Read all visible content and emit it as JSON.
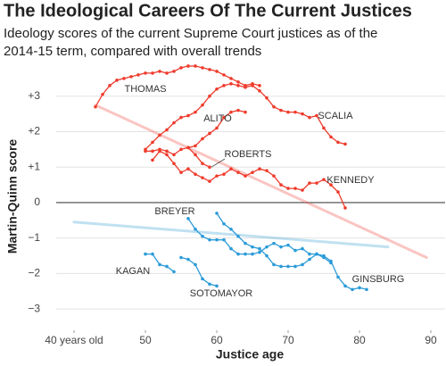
{
  "chart_data": {
    "type": "line",
    "title": "The Ideological Careers Of The Current Justices",
    "subtitle": "Ideology scores of the current Supreme Court justices as of the 2014-15 term, compared with overall trends",
    "x_label": "Justice age",
    "y_label": "Martin-Quinn score",
    "xlim": [
      37.5,
      92
    ],
    "ylim": [
      -3.6,
      4
    ],
    "xticks": [
      {
        "value": 40,
        "label": "40 years old"
      },
      50,
      60,
      70,
      80,
      90
    ],
    "yticks": [
      {
        "value": -3,
        "label": "−3"
      },
      {
        "value": -2,
        "label": "−2"
      },
      {
        "value": -1,
        "label": "−1"
      },
      0,
      {
        "value": 1,
        "label": "+1"
      },
      {
        "value": 2,
        "label": "+2"
      },
      {
        "value": 3,
        "label": "+3"
      }
    ],
    "grid": true,
    "series": [
      {
        "color": "#f05a50",
        "x": [
          43,
          89.4
        ],
        "values": [
          2.75,
          -1.55
        ]
      },
      {
        "color": "#4aa8d8",
        "x": [
          40,
          84
        ],
        "values": [
          -0.55,
          -1.25
        ]
      },
      {
        "name": "THOMAS",
        "color": "#ef3b2c",
        "x": [
          43,
          44,
          45,
          46,
          47,
          48,
          49,
          50,
          51,
          52,
          53,
          54,
          55,
          56,
          57,
          58,
          59,
          60,
          61,
          62,
          63,
          64,
          65,
          66
        ],
        "values": [
          2.7,
          3.05,
          3.3,
          3.45,
          3.5,
          3.55,
          3.6,
          3.65,
          3.65,
          3.7,
          3.65,
          3.7,
          3.8,
          3.85,
          3.85,
          3.8,
          3.75,
          3.7,
          3.6,
          3.5,
          3.4,
          3.3,
          3.35,
          3.3
        ]
      },
      {
        "name": "SCALIA",
        "color": "#ef3b2c",
        "x": [
          50,
          51,
          52,
          53,
          54,
          55,
          56,
          57,
          58,
          59,
          60,
          61,
          62,
          63,
          64,
          65,
          66,
          67,
          68,
          69,
          70,
          71,
          72,
          73,
          74,
          75,
          76,
          77,
          78
        ],
        "values": [
          1.5,
          1.7,
          1.9,
          2.05,
          2.25,
          2.4,
          2.45,
          2.55,
          2.75,
          3.0,
          3.2,
          3.3,
          3.35,
          3.3,
          3.25,
          3.3,
          3.15,
          2.95,
          2.7,
          2.6,
          2.55,
          2.55,
          2.5,
          2.4,
          2.45,
          2.1,
          1.85,
          1.7,
          1.65
        ]
      },
      {
        "name": "ALITO",
        "color": "#ef3b2c",
        "x": [
          56,
          57,
          58,
          59,
          60,
          61,
          62,
          63,
          64
        ],
        "values": [
          1.55,
          1.6,
          1.8,
          1.95,
          2.1,
          2.4,
          2.55,
          2.6,
          2.55
        ]
      },
      {
        "name": "ROBERTS",
        "color": "#ef3b2c",
        "x": [
          50,
          51,
          52,
          53,
          54,
          55,
          56,
          57,
          58,
          59
        ],
        "values": [
          1.45,
          1.45,
          1.5,
          1.45,
          1.35,
          1.5,
          1.55,
          1.35,
          1.1,
          1.0
        ]
      },
      {
        "name": "KENNEDY",
        "color": "#ef3b2c",
        "x": [
          51,
          52,
          53,
          54,
          55,
          56,
          57,
          58,
          59,
          60,
          61,
          62,
          63,
          64,
          65,
          66,
          67,
          68,
          69,
          70,
          71,
          72,
          73,
          74,
          75,
          76,
          77,
          78
        ],
        "values": [
          1.2,
          1.45,
          1.35,
          1.1,
          0.85,
          0.95,
          0.8,
          0.7,
          0.6,
          0.75,
          0.8,
          0.95,
          0.85,
          0.75,
          0.85,
          0.95,
          0.9,
          0.75,
          0.5,
          0.4,
          0.4,
          0.35,
          0.55,
          0.55,
          0.65,
          0.5,
          0.3,
          -0.15
        ]
      },
      {
        "name": "BREYER",
        "color": "#2b9bd8",
        "x": [
          56,
          57,
          58,
          59,
          60,
          61,
          62,
          63,
          64,
          65,
          66,
          67,
          68,
          69,
          70,
          71,
          72,
          73,
          74,
          75,
          76
        ],
        "values": [
          -0.45,
          -0.75,
          -0.95,
          -1.05,
          -1.05,
          -1.05,
          -1.3,
          -1.45,
          -1.45,
          -1.45,
          -1.4,
          -1.25,
          -1.15,
          -1.25,
          -1.2,
          -1.35,
          -1.3,
          -1.45,
          -1.45,
          -1.55,
          -1.7
        ]
      },
      {
        "name": "GINSBURG",
        "color": "#2b9bd8",
        "x": [
          60,
          61,
          62,
          63,
          64,
          65,
          66,
          67,
          68,
          69,
          70,
          71,
          72,
          73,
          74,
          75,
          76,
          77,
          78,
          79,
          80,
          81
        ],
        "values": [
          -0.3,
          -0.6,
          -0.75,
          -0.95,
          -1.15,
          -1.25,
          -1.3,
          -1.5,
          -1.75,
          -1.8,
          -1.8,
          -1.8,
          -1.75,
          -1.6,
          -1.45,
          -1.5,
          -1.65,
          -2.1,
          -2.35,
          -2.45,
          -2.4,
          -2.45
        ]
      },
      {
        "name": "KAGAN",
        "color": "#2b9bd8",
        "x": [
          50,
          51,
          52,
          53,
          54
        ],
        "values": [
          -1.45,
          -1.45,
          -1.75,
          -1.8,
          -1.95
        ]
      },
      {
        "name": "SOTOMAYOR",
        "color": "#2b9bd8",
        "x": [
          55,
          56,
          57,
          58,
          59,
          60
        ],
        "values": [
          -1.55,
          -1.6,
          -1.75,
          -2.15,
          -2.3,
          -2.35
        ]
      }
    ]
  }
}
